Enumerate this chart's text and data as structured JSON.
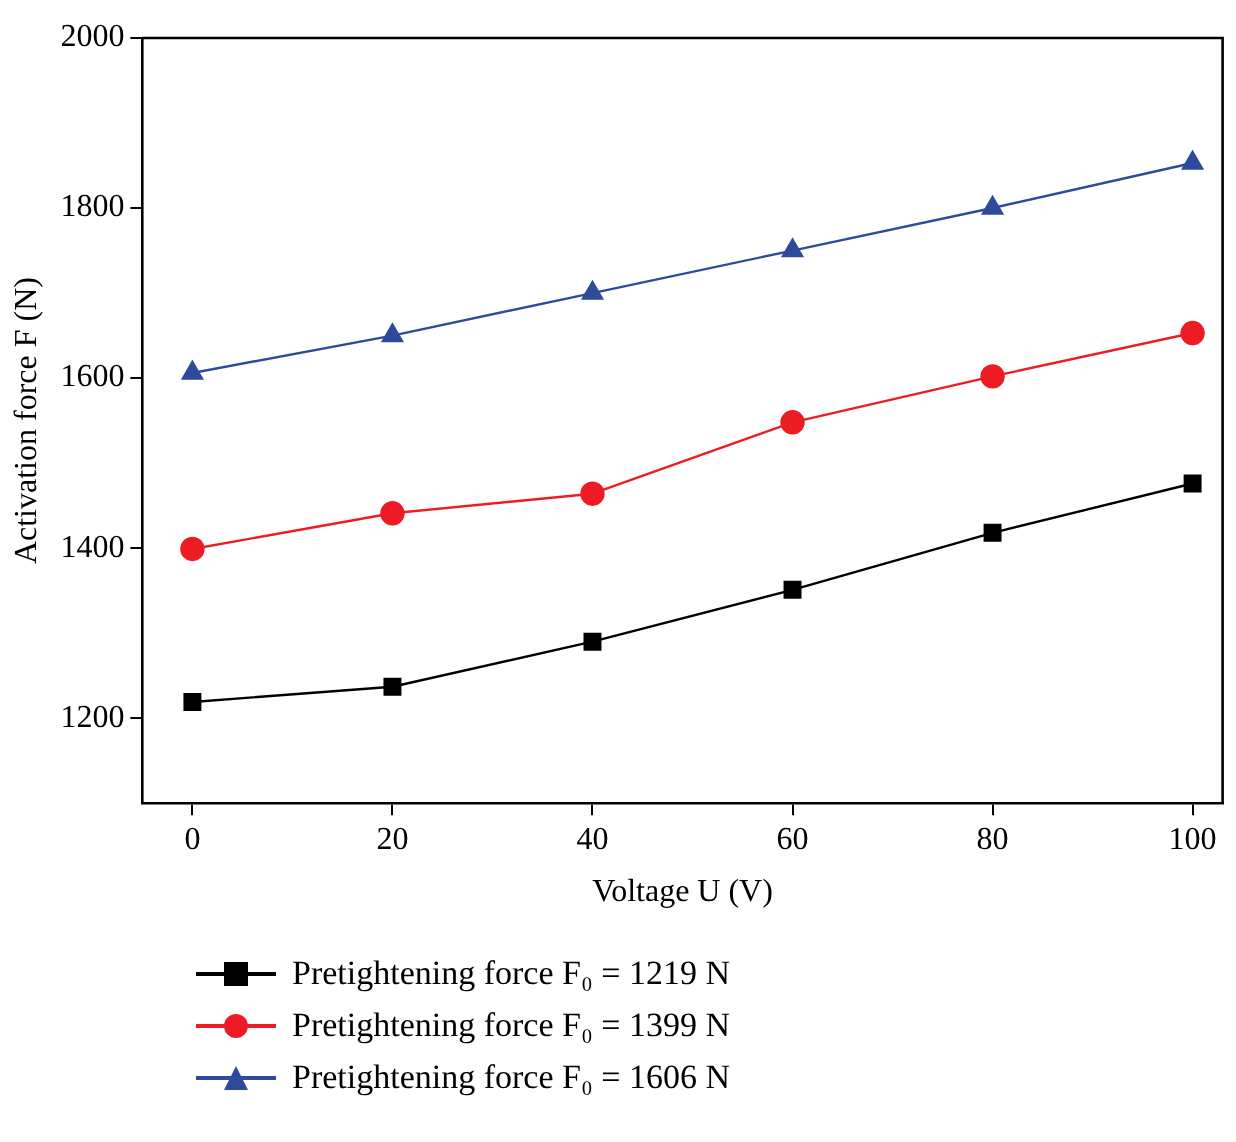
{
  "chart_data": {
    "type": "line",
    "xlabel": "Voltage U (V)",
    "ylabel": "Activation force F (N)",
    "x": [
      0,
      20,
      40,
      60,
      80,
      100
    ],
    "series": [
      {
        "name": "Pretightening force F₀ = 1219 N",
        "color": "#000000",
        "marker": "square",
        "values": [
          1219,
          1237,
          1290,
          1351,
          1418,
          1476
        ]
      },
      {
        "name": "Pretightening force F₀ = 1399 N",
        "color": "#ed1c24",
        "marker": "circle",
        "values": [
          1399,
          1441,
          1464,
          1548,
          1602,
          1653
        ]
      },
      {
        "name": "Pretightening force F₀ = 1606 N",
        "color": "#2e4b9b",
        "marker": "triangle",
        "values": [
          1606,
          1650,
          1700,
          1750,
          1800,
          1853
        ]
      }
    ],
    "xlim": [
      -5,
      103
    ],
    "ylim": [
      1100,
      2000
    ],
    "xticks": [
      0,
      20,
      40,
      60,
      80,
      100
    ],
    "yticks": [
      1200,
      1400,
      1600,
      1800,
      2000
    ],
    "grid": false,
    "legend": "bottom",
    "line_style": "solid"
  }
}
